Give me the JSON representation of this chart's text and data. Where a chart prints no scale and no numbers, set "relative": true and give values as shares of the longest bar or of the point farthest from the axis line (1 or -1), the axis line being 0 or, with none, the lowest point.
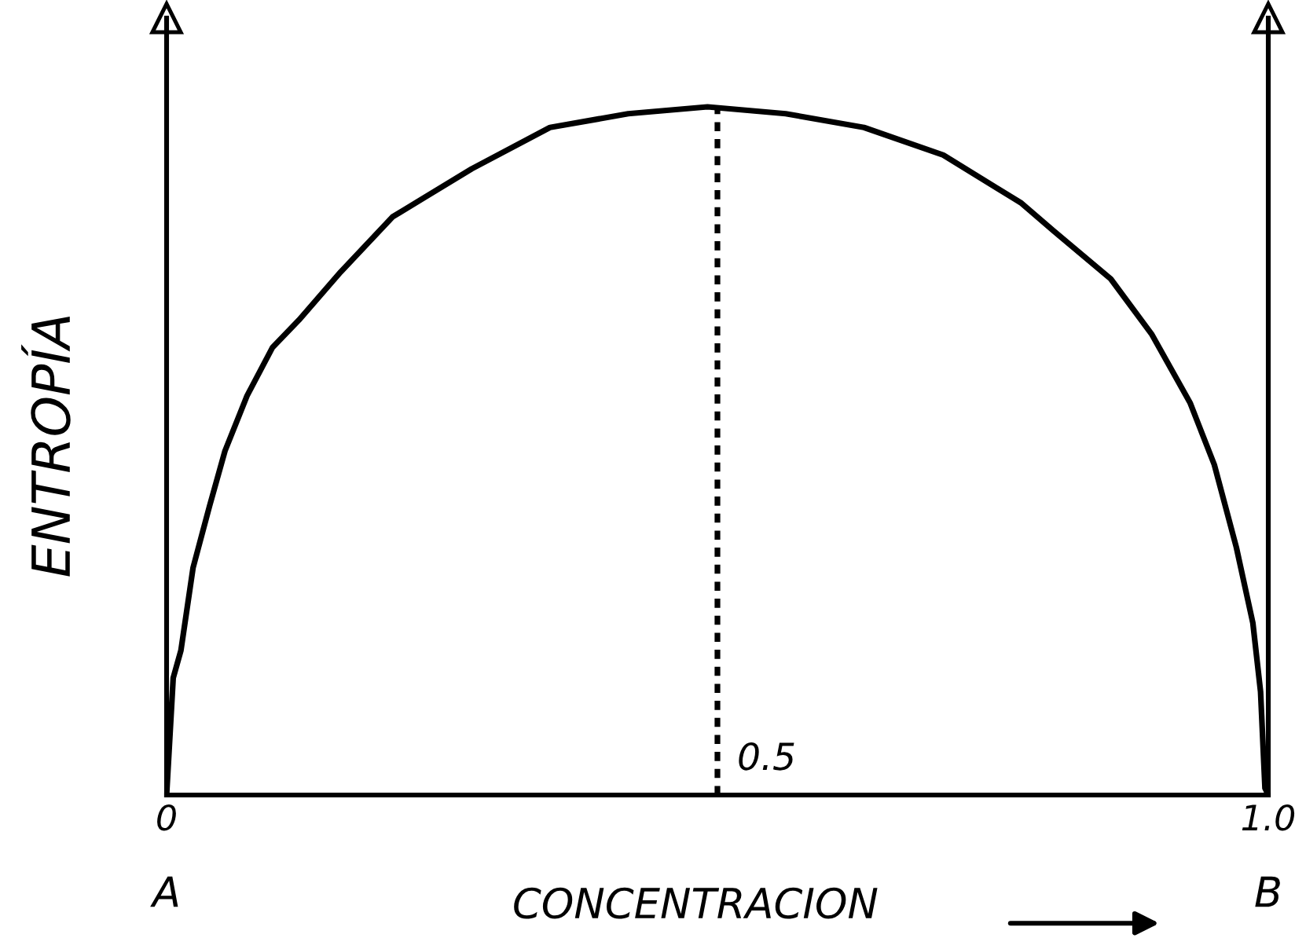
{
  "chart_data": {
    "type": "line",
    "relative": true,
    "xlabel": "CONCENTRACION",
    "ylabel": "ENTROPÍA",
    "color": "#000000",
    "line_style": "solid",
    "tick_labels": "x",
    "x": [
      0,
      0.006,
      0.013,
      0.024,
      0.039,
      0.053,
      0.073,
      0.096,
      0.12,
      0.158,
      0.205,
      0.277,
      0.348,
      0.419,
      0.491,
      0.562,
      0.633,
      0.705,
      0.776,
      0.805,
      0.857,
      0.894,
      0.929,
      0.951,
      0.971,
      0.986,
      0.993,
      0.997,
      1
    ],
    "values": [
      0,
      0.17,
      0.21,
      0.33,
      0.42,
      0.5,
      0.58,
      0.65,
      0.69,
      0.76,
      0.84,
      0.91,
      0.97,
      0.99,
      1,
      0.99,
      0.97,
      0.93,
      0.86,
      0.82,
      0.75,
      0.67,
      0.57,
      0.48,
      0.36,
      0.25,
      0.15,
      0.01,
      0
    ],
    "xlim": [
      0,
      1
    ],
    "xticks": [
      0,
      {
        "value": 1,
        "label": "1.0"
      }
    ],
    "ref_lines": [
      {
        "axis": "x",
        "value": 0.5,
        "label": "0.5",
        "line_style": "dashed"
      }
    ],
    "annotations": [
      {
        "text": "A",
        "x": 0,
        "y": 0
      },
      {
        "text": "B",
        "x": 1,
        "y": 0
      }
    ]
  }
}
